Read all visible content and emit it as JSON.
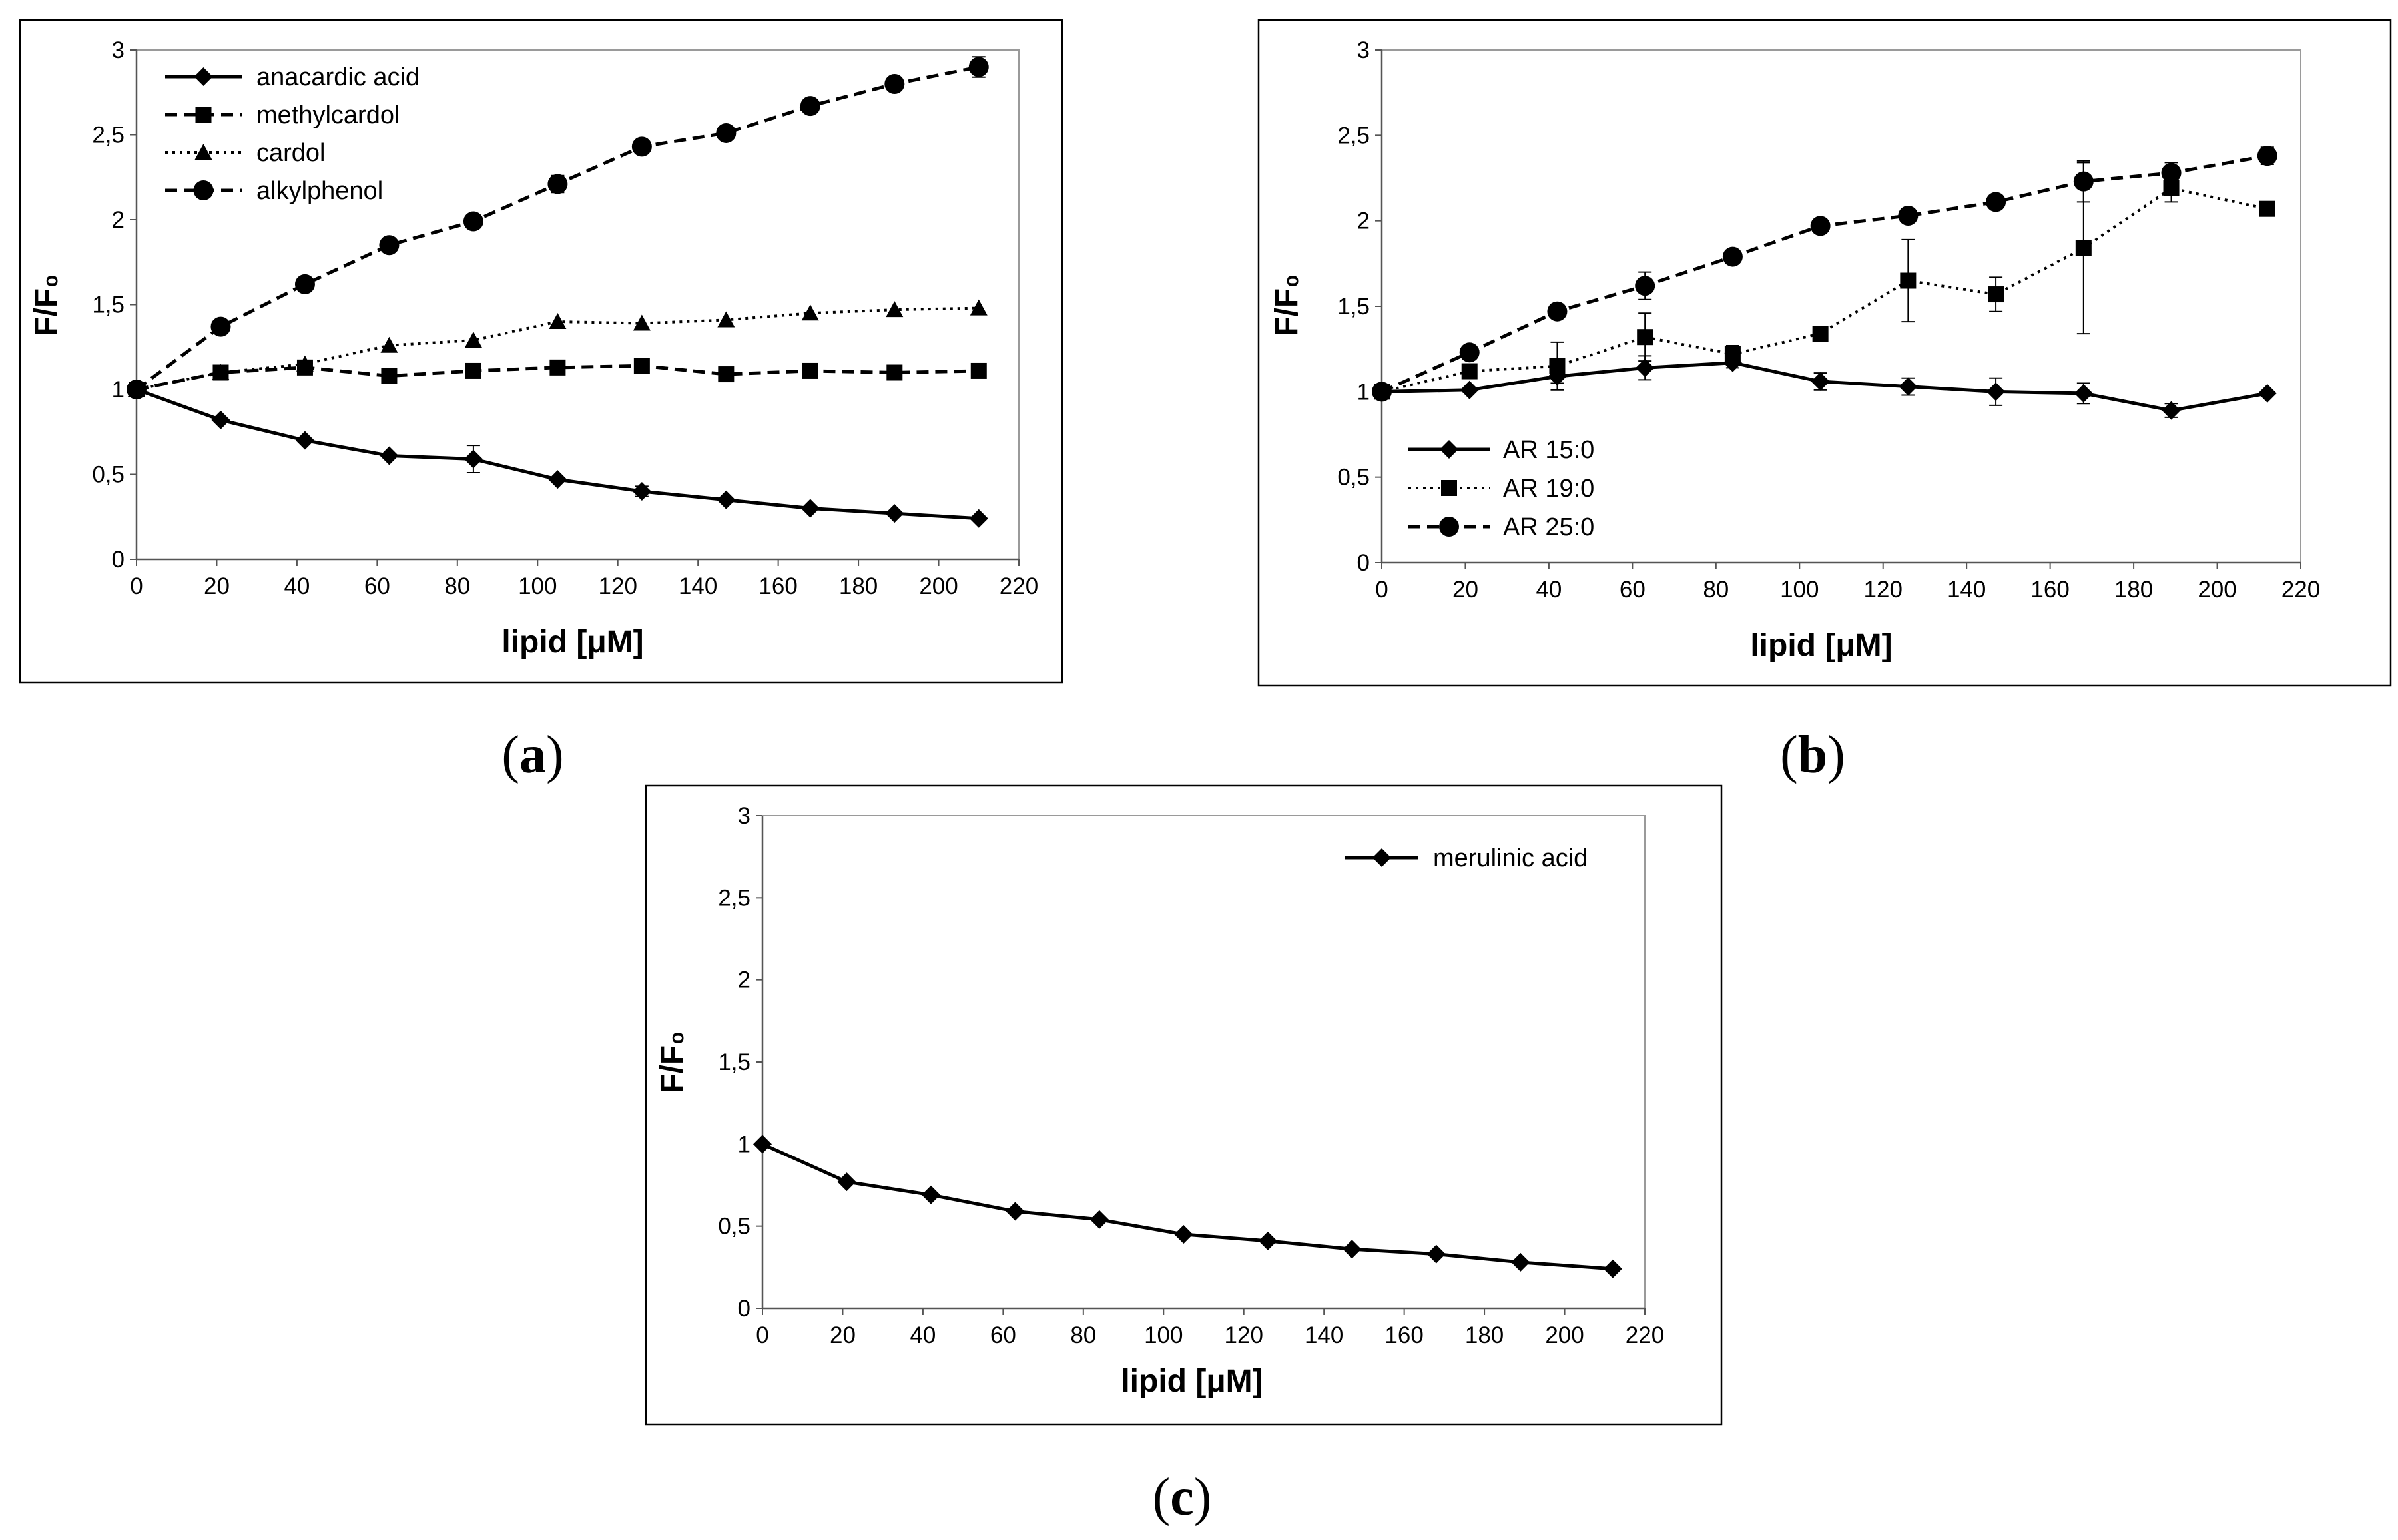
{
  "chart_data": [
    {
      "type": "line",
      "panel_label": "a",
      "xlabel": "lipid [μM]",
      "ylabel": "F/F₀",
      "xlim": [
        0,
        220
      ],
      "ylim": [
        0,
        3
      ],
      "x_ticks": [
        0,
        20,
        40,
        60,
        80,
        100,
        120,
        140,
        160,
        180,
        200,
        220
      ],
      "y_ticks": [
        0,
        0.5,
        1,
        1.5,
        2,
        2.5,
        3
      ],
      "y_tick_labels": [
        "0",
        "0,5",
        "1",
        "1,5",
        "2",
        "2,5",
        "3"
      ],
      "legend_position": "top-left",
      "x": [
        0,
        21,
        42,
        63,
        84,
        105,
        126,
        147,
        168,
        189,
        210
      ],
      "series": [
        {
          "name": "anacardic acid",
          "dash": "solid",
          "marker": "diamond",
          "values": [
            1.0,
            0.82,
            0.7,
            0.61,
            0.59,
            0.47,
            0.4,
            0.35,
            0.3,
            0.27,
            0.24
          ],
          "errors": [
            0,
            0,
            0,
            0,
            0.08,
            0,
            0.03,
            0,
            0,
            0,
            0
          ]
        },
        {
          "name": "methylcardol",
          "dash": "dashed",
          "marker": "square",
          "values": [
            1.0,
            1.1,
            1.13,
            1.08,
            1.11,
            1.13,
            1.14,
            1.09,
            1.11,
            1.1,
            1.11
          ],
          "errors": [
            0,
            0,
            0,
            0,
            0,
            0,
            0,
            0,
            0,
            0,
            0
          ]
        },
        {
          "name": "cardol",
          "dash": "dotted",
          "marker": "triangle",
          "values": [
            1.0,
            1.1,
            1.15,
            1.26,
            1.29,
            1.4,
            1.39,
            1.41,
            1.45,
            1.47,
            1.48
          ],
          "errors": [
            0,
            0,
            0,
            0,
            0,
            0,
            0,
            0,
            0,
            0,
            0
          ]
        },
        {
          "name": "alkylphenol",
          "dash": "dashed",
          "marker": "circle",
          "values": [
            1.0,
            1.37,
            1.62,
            1.85,
            1.99,
            2.21,
            2.43,
            2.51,
            2.67,
            2.8,
            2.9
          ],
          "errors": [
            0,
            0,
            0,
            0.04,
            0,
            0.05,
            0,
            0,
            0,
            0,
            0.06
          ]
        }
      ]
    },
    {
      "type": "line",
      "panel_label": "b",
      "xlabel": "lipid [μM]",
      "ylabel": "F/F₀",
      "xlim": [
        0,
        220
      ],
      "ylim": [
        0,
        3
      ],
      "x_ticks": [
        0,
        20,
        40,
        60,
        80,
        100,
        120,
        140,
        160,
        180,
        200,
        220
      ],
      "y_ticks": [
        0,
        0.5,
        1,
        1.5,
        2,
        2.5,
        3
      ],
      "y_tick_labels": [
        "0",
        "0,5",
        "1",
        "1,5",
        "2",
        "2,5",
        "3"
      ],
      "legend_position": "bottom-left",
      "x": [
        0,
        21,
        42,
        63,
        84,
        105,
        126,
        147,
        168,
        189,
        212
      ],
      "series": [
        {
          "name": "AR 15:0",
          "dash": "solid",
          "marker": "diamond",
          "values": [
            1.0,
            1.01,
            1.09,
            1.14,
            1.17,
            1.06,
            1.03,
            1.0,
            0.99,
            0.89,
            0.99
          ],
          "errors": [
            0,
            0,
            0.04,
            0.07,
            0.03,
            0.05,
            0.05,
            0.08,
            0.06,
            0.04,
            0
          ]
        },
        {
          "name": "AR 19:0",
          "dash": "dotted",
          "marker": "square",
          "values": [
            1.0,
            1.12,
            1.15,
            1.32,
            1.22,
            1.34,
            1.65,
            1.57,
            1.84,
            2.19,
            2.07
          ],
          "errors": [
            0,
            0.04,
            0.14,
            0.14,
            0.05,
            0.04,
            0.24,
            0.1,
            0.5,
            0.08,
            0
          ]
        },
        {
          "name": "AR 25:0",
          "dash": "dashed",
          "marker": "circle",
          "values": [
            1.0,
            1.23,
            1.47,
            1.62,
            1.79,
            1.97,
            2.03,
            2.11,
            2.23,
            2.28,
            2.38
          ],
          "errors": [
            0,
            0,
            0,
            0.08,
            0,
            0.04,
            0,
            0,
            0.12,
            0.06,
            0.05
          ]
        }
      ]
    },
    {
      "type": "line",
      "panel_label": "c",
      "xlabel": "lipid [μM]",
      "ylabel": "F/F₀",
      "xlim": [
        0,
        220
      ],
      "ylim": [
        0,
        3
      ],
      "x_ticks": [
        0,
        20,
        40,
        60,
        80,
        100,
        120,
        140,
        160,
        180,
        200,
        220
      ],
      "y_ticks": [
        0,
        0.5,
        1,
        1.5,
        2,
        2.5,
        3
      ],
      "y_tick_labels": [
        "0",
        "0,5",
        "1",
        "1,5",
        "2",
        "2,5",
        "3"
      ],
      "legend_position": "top-right",
      "x": [
        0,
        21,
        42,
        63,
        84,
        105,
        126,
        147,
        168,
        189,
        212
      ],
      "series": [
        {
          "name": "merulinic acid",
          "dash": "solid",
          "marker": "diamond",
          "values": [
            1.0,
            0.77,
            0.69,
            0.59,
            0.54,
            0.45,
            0.41,
            0.36,
            0.33,
            0.28,
            0.24
          ],
          "errors": [
            0,
            0,
            0,
            0,
            0,
            0,
            0,
            0,
            0,
            0,
            0
          ]
        }
      ]
    }
  ]
}
